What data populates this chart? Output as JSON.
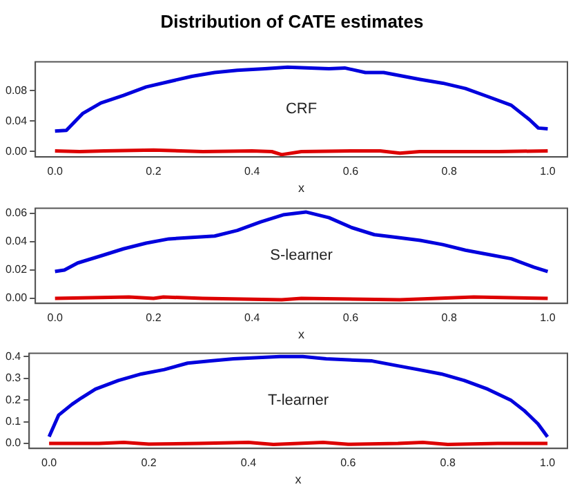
{
  "chart_data": [
    {
      "type": "line",
      "title": "Distribution of CATE estimates",
      "xlabel": "x",
      "annotations": [
        "CRF"
      ],
      "grid": false,
      "marker": "none",
      "line_style": "solid",
      "xlim": [
        -0.04,
        1.04
      ],
      "xticks": [
        {
          "value": 0,
          "label": "0.0"
        },
        {
          "value": 0.2,
          "label": "0.2"
        },
        {
          "value": 0.4,
          "label": "0.4"
        },
        {
          "value": 0.6,
          "label": "0.6"
        },
        {
          "value": 0.8,
          "label": "0.8"
        },
        {
          "value": 1,
          "label": "1.0"
        }
      ],
      "ylim": [
        -0.007,
        0.118
      ],
      "yticks": [
        {
          "value": 0,
          "label": "0.00"
        },
        {
          "value": 0.04,
          "label": "0.04"
        },
        {
          "value": 0.08,
          "label": "0.08"
        }
      ],
      "series": [
        {
          "color": "#0000dd",
          "x": [
            0,
            0.023,
            0.056,
            0.093,
            0.139,
            0.185,
            0.231,
            0.278,
            0.324,
            0.37,
            0.426,
            0.472,
            0.556,
            0.588,
            0.63,
            0.667,
            0.741,
            0.787,
            0.833,
            0.88,
            0.926,
            0.963,
            0.981,
            1.0
          ],
          "values": [
            0.027,
            0.028,
            0.05,
            0.064,
            0.074,
            0.085,
            0.092,
            0.099,
            0.104,
            0.107,
            0.109,
            0.111,
            0.109,
            0.11,
            0.104,
            0.104,
            0.095,
            0.09,
            0.083,
            0.072,
            0.061,
            0.042,
            0.031,
            0.03
          ]
        },
        {
          "color": "#dd0000",
          "x": [
            0,
            0.05,
            0.1,
            0.2,
            0.3,
            0.4,
            0.44,
            0.46,
            0.5,
            0.6,
            0.66,
            0.7,
            0.74,
            0.8,
            0.9,
            1.0
          ],
          "values": [
            0.001,
            0.0,
            0.001,
            0.002,
            0.0,
            0.001,
            0.0,
            -0.004,
            0.0,
            0.001,
            0.001,
            -0.002,
            0.0,
            0.0,
            0.0,
            0.001
          ]
        }
      ]
    },
    {
      "type": "line",
      "xlabel": "x",
      "annotations": [
        "S-learner"
      ],
      "grid": false,
      "marker": "none",
      "line_style": "solid",
      "xlim": [
        -0.04,
        1.04
      ],
      "xticks": [
        {
          "value": 0,
          "label": "0.0"
        },
        {
          "value": 0.2,
          "label": "0.2"
        },
        {
          "value": 0.4,
          "label": "0.4"
        },
        {
          "value": 0.6,
          "label": "0.6"
        },
        {
          "value": 0.8,
          "label": "0.8"
        },
        {
          "value": 1,
          "label": "1.0"
        }
      ],
      "ylim": [
        -0.0035,
        0.0636
      ],
      "yticks": [
        {
          "value": 0,
          "label": "0.00"
        },
        {
          "value": 0.02,
          "label": "0.02"
        },
        {
          "value": 0.04,
          "label": "0.04"
        },
        {
          "value": 0.06,
          "label": "0.06"
        }
      ],
      "series": [
        {
          "color": "#0000dd",
          "x": [
            0,
            0.019,
            0.046,
            0.093,
            0.139,
            0.185,
            0.231,
            0.278,
            0.324,
            0.37,
            0.417,
            0.463,
            0.509,
            0.556,
            0.602,
            0.648,
            0.694,
            0.741,
            0.787,
            0.833,
            0.88,
            0.926,
            0.972,
            1.0
          ],
          "values": [
            0.019,
            0.02,
            0.025,
            0.03,
            0.035,
            0.039,
            0.042,
            0.043,
            0.044,
            0.048,
            0.054,
            0.059,
            0.061,
            0.057,
            0.05,
            0.045,
            0.043,
            0.041,
            0.038,
            0.034,
            0.031,
            0.028,
            0.022,
            0.019
          ]
        },
        {
          "color": "#dd0000",
          "x": [
            0,
            0.15,
            0.2,
            0.22,
            0.3,
            0.46,
            0.5,
            0.7,
            0.85,
            1.0
          ],
          "values": [
            0.0,
            0.001,
            0.0,
            0.001,
            0.0,
            -0.001,
            0.0,
            -0.001,
            0.001,
            0.0
          ]
        }
      ]
    },
    {
      "type": "line",
      "xlabel": "x",
      "annotations": [
        "T-learner"
      ],
      "grid": false,
      "marker": "none",
      "line_style": "solid",
      "xlim": [
        -0.04,
        1.04
      ],
      "xticks": [
        {
          "value": 0,
          "label": "0.0"
        },
        {
          "value": 0.2,
          "label": "0.2"
        },
        {
          "value": 0.4,
          "label": "0.4"
        },
        {
          "value": 0.6,
          "label": "0.6"
        },
        {
          "value": 0.8,
          "label": "0.8"
        },
        {
          "value": 1,
          "label": "1.0"
        }
      ],
      "ylim": [
        -0.023,
        0.415
      ],
      "yticks": [
        {
          "value": 0,
          "label": "0.0"
        },
        {
          "value": 0.1,
          "label": "0.1"
        },
        {
          "value": 0.2,
          "label": "0.2"
        },
        {
          "value": 0.3,
          "label": "0.3"
        },
        {
          "value": 0.4,
          "label": "0.4"
        }
      ],
      "series": [
        {
          "color": "#0000dd",
          "x": [
            0,
            0.019,
            0.046,
            0.065,
            0.093,
            0.139,
            0.185,
            0.231,
            0.278,
            0.324,
            0.37,
            0.463,
            0.509,
            0.556,
            0.648,
            0.694,
            0.741,
            0.787,
            0.833,
            0.88,
            0.926,
            0.954,
            0.981,
            1.0
          ],
          "values": [
            0.031,
            0.13,
            0.18,
            0.21,
            0.25,
            0.29,
            0.32,
            0.34,
            0.37,
            0.38,
            0.39,
            0.4,
            0.4,
            0.39,
            0.38,
            0.36,
            0.34,
            0.32,
            0.29,
            0.25,
            0.2,
            0.15,
            0.09,
            0.03
          ]
        },
        {
          "color": "#dd0000",
          "x": [
            0,
            0.1,
            0.15,
            0.2,
            0.3,
            0.4,
            0.45,
            0.5,
            0.55,
            0.6,
            0.7,
            0.75,
            0.8,
            0.9,
            1.0
          ],
          "values": [
            0.0,
            0.0,
            0.005,
            -0.003,
            0.0,
            0.005,
            -0.005,
            0.0,
            0.005,
            -0.004,
            0.0,
            0.005,
            -0.005,
            0.0,
            0.0
          ]
        }
      ]
    }
  ]
}
